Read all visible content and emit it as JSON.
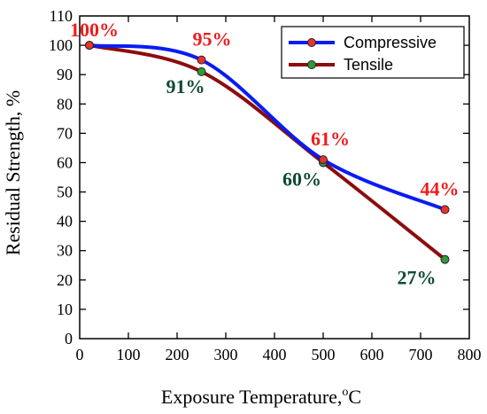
{
  "chart_data": {
    "type": "line",
    "xlabel": "Exposure Temperature,",
    "xlabel_superscript": "o",
    "xlabel_unit": "C",
    "ylabel": "Residual Strength, %",
    "xlim": [
      0,
      800
    ],
    "ylim": [
      0,
      110
    ],
    "x_ticks": [
      "0",
      "100",
      "200",
      "300",
      "400",
      "500",
      "600",
      "700",
      "800"
    ],
    "y_ticks": [
      "0",
      "10",
      "20",
      "30",
      "40",
      "50",
      "60",
      "70",
      "80",
      "90",
      "100",
      "110"
    ],
    "grid": false,
    "legend_position": "top-right",
    "series": [
      {
        "name": "Compressive",
        "line_color": "#0a1cf2",
        "marker_color": "#e8332c",
        "label_color": "#ee1c1c",
        "points": [
          {
            "x": 20,
            "y": 100,
            "label": "100%"
          },
          {
            "x": 250,
            "y": 95,
            "label": "95%"
          },
          {
            "x": 500,
            "y": 61,
            "label": "61%"
          },
          {
            "x": 750,
            "y": 44,
            "label": "44%"
          }
        ]
      },
      {
        "name": "Tensile",
        "line_color": "#8b0d0d",
        "marker_color": "#2e9a3a",
        "label_color": "#0f4a34",
        "points": [
          {
            "x": 20,
            "y": 100,
            "label": ""
          },
          {
            "x": 250,
            "y": 91,
            "label": "91%"
          },
          {
            "x": 500,
            "y": 60,
            "label": "60%"
          },
          {
            "x": 750,
            "y": 27,
            "label": "27%"
          }
        ]
      }
    ]
  }
}
